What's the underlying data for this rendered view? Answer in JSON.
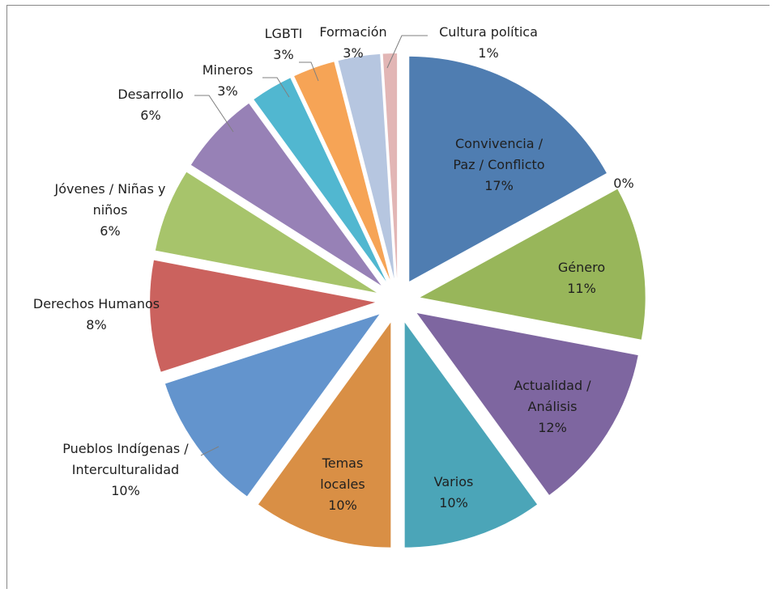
{
  "chart_data": {
    "type": "pie",
    "exploded": true,
    "start_angle_deg": 90,
    "direction": "clockwise",
    "legend": "none",
    "slices": [
      {
        "label": "Convivencia / Paz / Conflicto",
        "value_label": "17%",
        "value": 17,
        "color": "#4f7db1"
      },
      {
        "label": "",
        "value_label": "0%",
        "value": 0,
        "color": "#4f7db1"
      },
      {
        "label": "Género",
        "value_label": "11%",
        "value": 11,
        "color": "#98b65a"
      },
      {
        "label": "Actualidad / Análisis",
        "value_label": "12%",
        "value": 12,
        "color": "#7e66a0"
      },
      {
        "label": "Varios",
        "value_label": "10%",
        "value": 10,
        "color": "#4ba5b8"
      },
      {
        "label": "Temas locales",
        "value_label": "10%",
        "value": 10,
        "color": "#d98f45"
      },
      {
        "label": "Pueblos Indígenas / Interculturalidad",
        "value_label": "10%",
        "value": 10,
        "color": "#6394cd"
      },
      {
        "label": "Derechos Humanos",
        "value_label": "8%",
        "value": 8,
        "color": "#cb625e"
      },
      {
        "label": "Jóvenes / Niñas y niños",
        "value_label": "6%",
        "value": 6,
        "color": "#a7c46b"
      },
      {
        "label": "Desarrollo",
        "value_label": "6%",
        "value": 6,
        "color": "#9781b6"
      },
      {
        "label": "Mineros",
        "value_label": "3%",
        "value": 3,
        "color": "#51b7d0"
      },
      {
        "label": "LGBTI",
        "value_label": "3%",
        "value": 3,
        "color": "#f6a456"
      },
      {
        "label": "Formación",
        "value_label": "3%",
        "value": 3,
        "color": "#b6c6e0"
      },
      {
        "label": "Cultura política",
        "value_label": "1%",
        "value": 1,
        "color": "#e2b6b5"
      }
    ]
  }
}
